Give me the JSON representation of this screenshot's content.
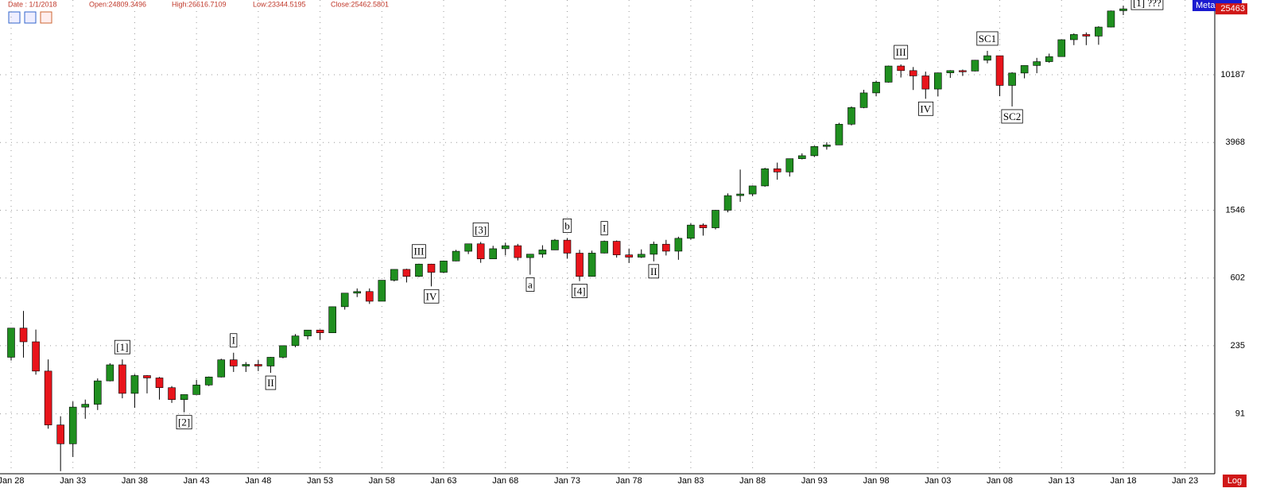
{
  "header": {
    "date": "Date : 1/1/2018",
    "open": "Open:24809.3496",
    "high": "High:26616.7109",
    "low": "Low:23344.5195",
    "close": "Close:25462.5801"
  },
  "indicator": "Meta",
  "scale_button": "Log",
  "chart_data": {
    "type": "candlestick",
    "log_scale": true,
    "grid": true,
    "up_color": "#1f8f1f",
    "down_color": "#e8141b",
    "xlim": [
      1927.1,
      2025.4
    ],
    "xticks": [
      {
        "value": 1928,
        "label": "Jan 28"
      },
      {
        "value": 1933,
        "label": "Jan 33"
      },
      {
        "value": 1938,
        "label": "Jan 38"
      },
      {
        "value": 1943,
        "label": "Jan 43"
      },
      {
        "value": 1948,
        "label": "Jan 48"
      },
      {
        "value": 1953,
        "label": "Jan 53"
      },
      {
        "value": 1958,
        "label": "Jan 58"
      },
      {
        "value": 1963,
        "label": "Jan 63"
      },
      {
        "value": 1968,
        "label": "Jan 68"
      },
      {
        "value": 1973,
        "label": "Jan 73"
      },
      {
        "value": 1978,
        "label": "Jan 78"
      },
      {
        "value": 1983,
        "label": "Jan 83"
      },
      {
        "value": 1988,
        "label": "Jan 88"
      },
      {
        "value": 1993,
        "label": "Jan 93"
      },
      {
        "value": 1998,
        "label": "Jan 98"
      },
      {
        "value": 2003,
        "label": "Jan 03"
      },
      {
        "value": 2008,
        "label": "Jan 08"
      },
      {
        "value": 2013,
        "label": "Jan 13"
      },
      {
        "value": 2018,
        "label": "Jan 18"
      },
      {
        "value": 2023,
        "label": "Jan 23"
      }
    ],
    "ylim": [
      40,
      28800
    ],
    "yticks": [
      91,
      235,
      602,
      1546,
      3968,
      10187
    ],
    "last_price": 25463,
    "x": [
      1928,
      1929,
      1930,
      1931,
      1932,
      1933,
      1934,
      1935,
      1936,
      1937,
      1938,
      1939,
      1940,
      1941,
      1942,
      1943,
      1944,
      1945,
      1946,
      1947,
      1948,
      1949,
      1950,
      1951,
      1952,
      1953,
      1954,
      1955,
      1956,
      1957,
      1958,
      1959,
      1960,
      1961,
      1962,
      1963,
      1964,
      1965,
      1966,
      1967,
      1968,
      1969,
      1970,
      1971,
      1972,
      1973,
      1974,
      1975,
      1976,
      1977,
      1978,
      1979,
      1980,
      1981,
      1982,
      1983,
      1984,
      1985,
      1986,
      1987,
      1988,
      1989,
      1990,
      1991,
      1992,
      1993,
      1994,
      1995,
      1996,
      1997,
      1998,
      1999,
      2000,
      2001,
      2002,
      2003,
      2004,
      2005,
      2006,
      2007,
      2008,
      2009,
      2010,
      2011,
      2012,
      2013,
      2014,
      2015,
      2016,
      2017,
      2018
    ],
    "open": [
      200,
      300,
      248,
      165,
      78,
      60,
      100,
      104,
      144,
      180,
      121,
      155,
      150,
      131,
      111,
      119,
      136,
      152,
      193,
      177,
      181,
      177,
      200,
      235,
      269,
      292,
      281,
      404,
      488,
      499,
      436,
      584,
      679,
      616,
      731,
      652,
      763,
      874,
      969,
      786,
      905,
      944,
      800,
      839,
      890,
      1020,
      851,
      616,
      852,
      1004,
      831,
      805,
      838,
      964,
      875,
      1046,
      1258,
      1211,
      1546,
      1895,
      1938,
      2168,
      2753,
      2633,
      3168,
      3301,
      3754,
      3834,
      5117,
      6448,
      7908,
      9181,
      11497,
      10787,
      10021,
      8342,
      10454,
      10783,
      10718,
      12463,
      13265,
      8776,
      10428,
      11578,
      12218,
      13104,
      16577,
      17823,
      17425,
      19763,
      24809
    ],
    "high": [
      300,
      381,
      294,
      194,
      88,
      108,
      111,
      149,
      184,
      194,
      158,
      156,
      152,
      134,
      119,
      146,
      153,
      196,
      213,
      187,
      193,
      201,
      235,
      276,
      292,
      294,
      404,
      488,
      521,
      521,
      584,
      679,
      685,
      735,
      734,
      767,
      891,
      969,
      995,
      943,
      985,
      968,
      842,
      950,
      1036,
      1051,
      891,
      881,
      1014,
      1015,
      907,
      897,
      1000,
      1024,
      1070,
      1287,
      1286,
      1553,
      1955,
      2722,
      2183,
      2791,
      2999,
      3168,
      3413,
      3794,
      3978,
      5216,
      6560,
      8259,
      9374,
      11568,
      11750,
      11337,
      10635,
      10454,
      10854,
      10940,
      12510,
      14198,
      13279,
      10548,
      11586,
      12876,
      13662,
      16588,
      18103,
      18351,
      19988,
      24876,
      26617
    ],
    "low": [
      191,
      199,
      157,
      74,
      41,
      50,
      85,
      96,
      143,
      113,
      99,
      121,
      111,
      106,
      93,
      119,
      134,
      151,
      163,
      163,
      165,
      161,
      197,
      230,
      256,
      255,
      280,
      388,
      462,
      420,
      436,
      574,
      566,
      610,
      536,
      646,
      760,
      840,
      744,
      786,
      825,
      769,
      631,
      798,
      889,
      788,
      577,
      632,
      848,
      800,
      742,
      796,
      759,
      824,
      776,
      1027,
      1086,
      1184,
      1502,
      1738,
      1879,
      2144,
      2365,
      2470,
      3136,
      3241,
      3593,
      3832,
      5032,
      6391,
      7539,
      9121,
      9796,
      8236,
      7286,
      7524,
      9750,
      10013,
      10667,
      11940,
      7552,
      6547,
      9686,
      10405,
      12036,
      13104,
      15373,
      15370,
      15451,
      19678,
      23345
    ],
    "close": [
      300,
      248,
      165,
      78,
      60,
      100,
      104,
      144,
      180,
      121,
      155,
      150,
      131,
      111,
      119,
      136,
      152,
      193,
      177,
      181,
      177,
      200,
      235,
      269,
      292,
      281,
      404,
      488,
      499,
      436,
      584,
      679,
      616,
      731,
      652,
      763,
      874,
      969,
      786,
      905,
      944,
      800,
      839,
      890,
      1020,
      851,
      616,
      852,
      1004,
      831,
      805,
      838,
      964,
      875,
      1046,
      1258,
      1211,
      1546,
      1895,
      1938,
      2168,
      2753,
      2633,
      3168,
      3301,
      3754,
      3834,
      5117,
      6448,
      7908,
      9181,
      11497,
      10787,
      10021,
      8342,
      10454,
      10783,
      10718,
      12463,
      13265,
      8776,
      10428,
      11578,
      12218,
      13104,
      16577,
      17823,
      17425,
      19763,
      24719,
      25463
    ],
    "annotations": [
      {
        "text": "[1]",
        "x": 1937,
        "position": "above"
      },
      {
        "text": "[2]",
        "x": 1942,
        "position": "below"
      },
      {
        "text": "I",
        "x": 1946,
        "position": "above"
      },
      {
        "text": "II",
        "x": 1949,
        "position": "below"
      },
      {
        "text": "III",
        "x": 1961,
        "position": "above"
      },
      {
        "text": "IV",
        "x": 1962,
        "position": "below"
      },
      {
        "text": "[3]",
        "x": 1966,
        "position": "above"
      },
      {
        "text": "a",
        "x": 1970,
        "position": "below"
      },
      {
        "text": "b",
        "x": 1973,
        "position": "above"
      },
      {
        "text": "[4]",
        "x": 1974,
        "position": "below"
      },
      {
        "text": "I",
        "x": 1976,
        "position": "above"
      },
      {
        "text": "II",
        "x": 1980,
        "position": "below"
      },
      {
        "text": "III",
        "x": 2000,
        "position": "above"
      },
      {
        "text": "IV",
        "x": 2002,
        "position": "below"
      },
      {
        "text": "SC1",
        "x": 2007,
        "position": "above"
      },
      {
        "text": "SC2",
        "x": 2009,
        "position": "below"
      },
      {
        "text": "[1] ???",
        "x": 2018,
        "position": "right"
      }
    ]
  }
}
